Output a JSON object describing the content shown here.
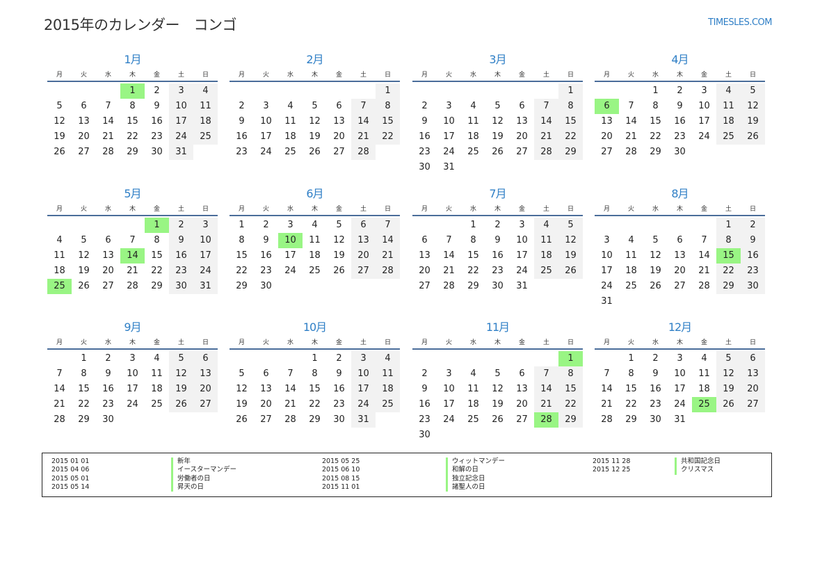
{
  "title": "2015年のカレンダー　コンゴ",
  "site": "TIMESLES.COM",
  "weekdays": [
    "月",
    "火",
    "水",
    "木",
    "金",
    "土",
    "日"
  ],
  "colors": {
    "accent": "#2f7fc6",
    "holiday": "#99f584",
    "weekend": "#f2f2f2",
    "rule": "#4a6d9a"
  },
  "months": [
    {
      "label": "1月",
      "first_weekday": "木",
      "days": 31,
      "holidays": [
        1
      ]
    },
    {
      "label": "2月",
      "first_weekday": "日",
      "days": 28,
      "holidays": []
    },
    {
      "label": "3月",
      "first_weekday": "日",
      "days": 31,
      "holidays": []
    },
    {
      "label": "4月",
      "first_weekday": "水",
      "days": 30,
      "holidays": [
        6
      ]
    },
    {
      "label": "5月",
      "first_weekday": "金",
      "days": 31,
      "holidays": [
        1,
        14,
        25
      ]
    },
    {
      "label": "6月",
      "first_weekday": "月",
      "days": 30,
      "holidays": [
        10
      ]
    },
    {
      "label": "7月",
      "first_weekday": "水",
      "days": 31,
      "holidays": []
    },
    {
      "label": "8月",
      "first_weekday": "土",
      "days": 31,
      "holidays": [
        15
      ]
    },
    {
      "label": "9月",
      "first_weekday": "火",
      "days": 30,
      "holidays": []
    },
    {
      "label": "10月",
      "first_weekday": "木",
      "days": 31,
      "holidays": []
    },
    {
      "label": "11月",
      "first_weekday": "日",
      "days": 30,
      "holidays": [
        1,
        28
      ]
    },
    {
      "label": "12月",
      "first_weekday": "火",
      "days": 31,
      "holidays": [
        25
      ]
    }
  ],
  "holidays": [
    {
      "date": "2015 01 01",
      "name": "新年"
    },
    {
      "date": "2015 04 06",
      "name": "イースターマンデー"
    },
    {
      "date": "2015 05 01",
      "name": "労働者の日"
    },
    {
      "date": "2015 05 14",
      "name": "昇天の日"
    },
    {
      "date": "2015 05 25",
      "name": "ウィットマンデー"
    },
    {
      "date": "2015 06 10",
      "name": "和解の日"
    },
    {
      "date": "2015 08 15",
      "name": "独立記念日"
    },
    {
      "date": "2015 11 01",
      "name": "諸聖人の日"
    },
    {
      "date": "2015 11 28",
      "name": "共和国記念日"
    },
    {
      "date": "2015 12 25",
      "name": "クリスマス"
    }
  ]
}
